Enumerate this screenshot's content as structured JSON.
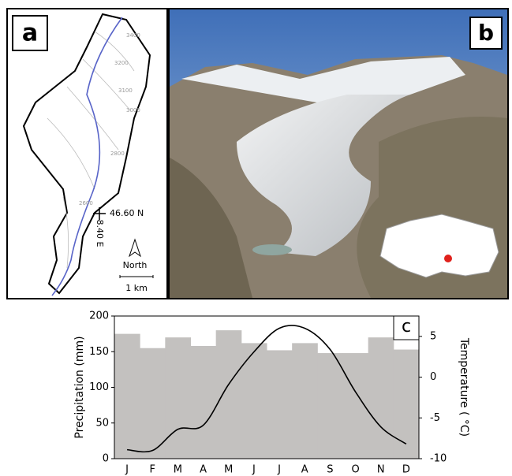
{
  "panel_a": {
    "label": "a",
    "contours": [
      "3400",
      "3200",
      "3100",
      "3000",
      "2800",
      "2600"
    ],
    "latitude": "46.60 N",
    "longitude": "8.40 E",
    "north": "North",
    "scale": "1 km"
  },
  "panel_b": {
    "label": "b"
  },
  "chart_data": {
    "type": "bar",
    "label": "c",
    "categories": [
      "J",
      "F",
      "M",
      "A",
      "M",
      "J",
      "J",
      "A",
      "S",
      "O",
      "N",
      "D"
    ],
    "series": [
      {
        "type": "bar",
        "color": "#c3c1bf",
        "values": [
          175,
          155,
          170,
          158,
          180,
          162,
          152,
          162,
          148,
          148,
          170,
          153
        ]
      },
      {
        "type": "line",
        "color": "#000000",
        "axis": "y2",
        "values": [
          -8.9,
          -9.0,
          -6.4,
          -5.9,
          -0.9,
          3.1,
          6.0,
          6.0,
          3.4,
          -1.8,
          -6.1,
          -8.2
        ]
      }
    ],
    "ylabel": "Precipitation (mm)",
    "y2label": "Temperature ( °C)",
    "ylim": [
      0,
      200
    ],
    "yticks": [
      0,
      50,
      100,
      150,
      200
    ],
    "y2lim": [
      -10,
      7.5
    ],
    "y2ticks": [
      -10,
      -5,
      0,
      5
    ]
  }
}
